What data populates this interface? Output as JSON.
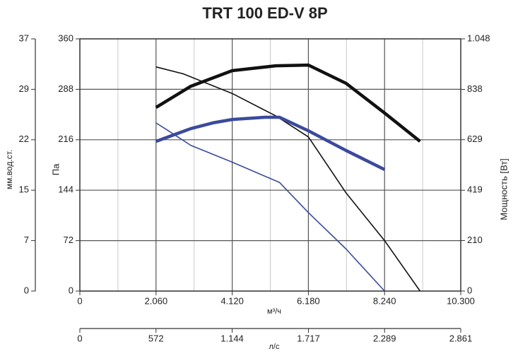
{
  "chart_data": {
    "type": "line",
    "title": "TRT 100 ED-V 8P",
    "ylabel": "Па",
    "ylabel_outer": "мм.вод.ст.",
    "y2label": "Мощность [Вт]",
    "xlabel": "м³/ч",
    "x2label": "л/с",
    "xlim": [
      0,
      10300
    ],
    "xticks": [
      0,
      {
        "value": 2060,
        "label": "2.060"
      },
      {
        "value": 4120,
        "label": "4.120"
      },
      {
        "value": 6180,
        "label": "6.180"
      },
      {
        "value": 8240,
        "label": "8.240"
      },
      {
        "value": 10300,
        "label": "10.300"
      }
    ],
    "x2lim": [
      0,
      2861
    ],
    "x2ticks": [
      0,
      572,
      {
        "value": 1144,
        "label": "1.144"
      },
      {
        "value": 1717,
        "label": "1.717"
      },
      {
        "value": 2289,
        "label": "2.289"
      },
      {
        "value": 2861,
        "label": "2.861"
      }
    ],
    "ylim": [
      0,
      360
    ],
    "yticks": [
      0,
      72,
      144,
      216,
      288,
      360
    ],
    "youterlim": [
      0,
      36.7
    ],
    "youterticks": [
      0,
      {
        "value": 7.34,
        "label": "7"
      },
      {
        "value": 14.68,
        "label": "15"
      },
      {
        "value": 22.02,
        "label": "22"
      },
      {
        "value": 29.36,
        "label": "29"
      },
      {
        "value": 36.7,
        "label": "37"
      }
    ],
    "y2lim": [
      0,
      1048
    ],
    "y2ticks": [
      0,
      210,
      419,
      629,
      838,
      {
        "value": 1048,
        "label": "1.048"
      }
    ],
    "grid": true,
    "series": [
      {
        "color": "#111111",
        "width": 1.6,
        "x": [
          2060,
          2800,
          4120,
          5300,
          6180,
          7200,
          8240,
          9200
        ],
        "values": [
          320,
          310,
          282,
          250,
          220,
          140,
          72,
          0
        ]
      },
      {
        "color": "#3b4a9c",
        "width": 1.6,
        "x": [
          2060,
          2300,
          3000,
          4120,
          5400,
          6180,
          7200,
          8240
        ],
        "values": [
          240,
          232,
          208,
          184,
          155,
          112,
          60,
          0
        ]
      },
      {
        "color": "#111111",
        "width": 4.5,
        "axis": "y2",
        "x": [
          2060,
          3000,
          4120,
          5300,
          6180,
          7200,
          8240,
          9200
        ],
        "values": [
          763,
          851,
          916,
          936,
          939,
          863,
          740,
          622
        ]
      },
      {
        "color": "#3b4a9c",
        "width": 4.5,
        "axis": "y2",
        "x": [
          2060,
          3000,
          3600,
          4120,
          5000,
          5400,
          6180,
          7200,
          8240
        ],
        "values": [
          622,
          675,
          699,
          713,
          722,
          722,
          666,
          584,
          505
        ]
      }
    ]
  }
}
